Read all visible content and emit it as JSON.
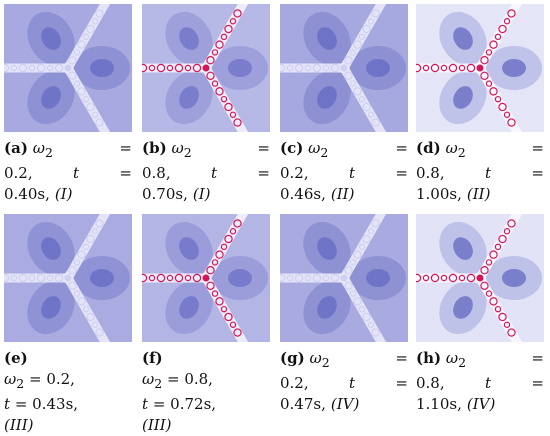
{
  "panels": [
    {
      "label": "(a)",
      "lines": [
        [
          "ω",
          "2",
          "=",
          ""
        ],
        [
          "0.2,",
          "t",
          "="
        ],
        [
          "0.40s, ",
          "(I)"
        ]
      ],
      "palette": {
        "base": "#a7a9e0",
        "mid": "#8589d0",
        "deep": "#6a6ec4",
        "branch": "#ecebfa",
        "accent": "#cdd0f2"
      }
    },
    {
      "label": "(b)",
      "lines": [
        [
          "ω",
          "2",
          "=",
          ""
        ],
        [
          "0.8,",
          "t",
          "="
        ],
        [
          "0.70s, ",
          "(I)"
        ]
      ],
      "palette": {
        "base": "#b6b8e6",
        "mid": "#9498d6",
        "deep": "#7377c8",
        "branch": "#f4f3fb",
        "accent": "#d6165a"
      }
    },
    {
      "label": "(c)",
      "lines": [
        [
          "ω",
          "2",
          "=",
          ""
        ],
        [
          "0.2,",
          "t",
          "="
        ],
        [
          "0.46s, ",
          "(II)"
        ]
      ],
      "palette": {
        "base": "#a6a8e0",
        "mid": "#8488cf",
        "deep": "#6a6ec4",
        "branch": "#ecebfa",
        "accent": "#cdd0f2"
      }
    },
    {
      "label": "(d)",
      "lines": [
        [
          "ω",
          "2",
          "=",
          ""
        ],
        [
          "0.8,",
          "t",
          "="
        ],
        [
          "1.00s, ",
          "(II)"
        ]
      ],
      "palette": {
        "base": "#e4e5f6",
        "mid": "#b4b7e4",
        "deep": "#6f73c6",
        "branch": "#faf9fd",
        "accent": "#d6165a"
      }
    },
    {
      "label": "(e)",
      "lines": [
        [
          "(e)"
        ],
        [
          "ω",
          "2",
          "=",
          "0.2,"
        ],
        [
          "t",
          "=",
          "0.43s,"
        ],
        [
          "(III)"
        ]
      ],
      "palette": {
        "base": "#a9abe1",
        "mid": "#878bd1",
        "deep": "#6b6fc5",
        "branch": "#ecebfa",
        "accent": "#cdd0f2"
      }
    },
    {
      "label": "(f)",
      "lines": [
        [
          "(f)"
        ],
        [
          "ω",
          "2",
          "=",
          "0.8,"
        ],
        [
          "t",
          "=",
          "0.72s,"
        ],
        [
          "(III)"
        ]
      ],
      "palette": {
        "base": "#b3b5e5",
        "mid": "#9296d5",
        "deep": "#7276c8",
        "branch": "#f4f3fb",
        "accent": "#d6165a"
      }
    },
    {
      "label": "(g)",
      "lines": [
        [
          "ω",
          "2",
          "=",
          ""
        ],
        [
          "0.2,",
          "t",
          "="
        ],
        [
          "0.47s, ",
          "(IV)"
        ]
      ],
      "palette": {
        "base": "#a8aae0",
        "mid": "#868acf",
        "deep": "#6a6ec4",
        "branch": "#ecebfa",
        "accent": "#cdd0f2"
      }
    },
    {
      "label": "(h)",
      "lines": [
        [
          "ω",
          "2",
          "=",
          ""
        ],
        [
          "0.8,",
          "t",
          "="
        ],
        [
          "1.10s, ",
          "(IV)"
        ]
      ],
      "palette": {
        "base": "#e2e3f6",
        "mid": "#b2b5e3",
        "deep": "#6f73c6",
        "branch": "#faf9fd",
        "accent": "#d6165a"
      }
    }
  ]
}
